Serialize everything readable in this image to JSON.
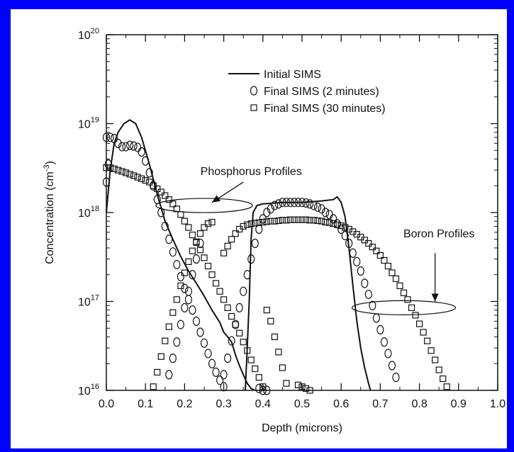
{
  "colors": {
    "page_background": "#0000ff",
    "plot_background": "#ffffff",
    "ink": "#111111"
  },
  "chart_data": {
    "type": "scatter",
    "title": "",
    "xlabel": "Depth (microns)",
    "ylabel": "Concentration (cm-3)",
    "ylabel_parts": {
      "text": "Concentration (cm",
      "superscript": "-3",
      "suffix": ")"
    },
    "xlim": [
      0.0,
      1.0
    ],
    "ylim": [
      1e+16,
      1e+20
    ],
    "yscale": "log",
    "grid": false,
    "legend_position": "top-right",
    "x_ticks": [
      "0.0",
      "0.1",
      "0.2",
      "0.3",
      "0.4",
      "0.5",
      "0.6",
      "0.7",
      "0.8",
      "0.9",
      "1.0"
    ],
    "y_ticks": [
      {
        "base": "10",
        "exp": "16",
        "value": 1e+16
      },
      {
        "base": "10",
        "exp": "17",
        "value": 1e+17
      },
      {
        "base": "10",
        "exp": "18",
        "value": 1e+18
      },
      {
        "base": "10",
        "exp": "19",
        "value": 1e+19
      },
      {
        "base": "10",
        "exp": "20",
        "value": 1e+20
      }
    ],
    "series": [
      {
        "name": "Initial SIMS",
        "marker": "line",
        "segments": [
          [
            [
              0.0,
              1e+18
            ],
            [
              0.01,
              3e+18
            ],
            [
              0.02,
              6e+18
            ],
            [
              0.03,
              8e+18
            ],
            [
              0.045,
              1e+19
            ],
            [
              0.06,
              1.1e+19
            ],
            [
              0.075,
              1e+19
            ],
            [
              0.09,
              7e+18
            ],
            [
              0.11,
              3.5e+18
            ],
            [
              0.13,
              1.6e+18
            ],
            [
              0.15,
              8e+17
            ],
            [
              0.17,
              5e+17
            ],
            [
              0.19,
              3.2e+17
            ],
            [
              0.21,
              2.2e+17
            ],
            [
              0.23,
              1.6e+17
            ],
            [
              0.25,
              1.15e+17
            ],
            [
              0.27,
              8e+16
            ],
            [
              0.29,
              5.8e+16
            ],
            [
              0.3,
              4.5e+16
            ],
            [
              0.31,
              4e+16
            ],
            [
              0.32,
              3.5e+16
            ],
            [
              0.33,
              2.5e+16
            ],
            [
              0.34,
              1.9e+16
            ],
            [
              0.35,
              1.5e+16
            ],
            [
              0.36,
              1.2e+16
            ],
            [
              0.37,
              1.05e+16
            ],
            [
              0.38,
              1e+16
            ]
          ],
          [
            [
              0.355,
              1e+16
            ],
            [
              0.36,
              3e+16
            ],
            [
              0.365,
              1e+17
            ],
            [
              0.37,
              5e+17
            ],
            [
              0.375,
              1e+18
            ],
            [
              0.385,
              1.2e+18
            ],
            [
              0.4,
              1.25e+18
            ],
            [
              0.45,
              1.3e+18
            ],
            [
              0.5,
              1.3e+18
            ],
            [
              0.55,
              1.35e+18
            ],
            [
              0.58,
              1.4e+18
            ],
            [
              0.59,
              1.5e+18
            ],
            [
              0.6,
              1.3e+18
            ],
            [
              0.61,
              9e+17
            ],
            [
              0.62,
              4e+17
            ],
            [
              0.63,
              1.5e+17
            ],
            [
              0.64,
              6e+16
            ],
            [
              0.65,
              3e+16
            ],
            [
              0.66,
              1.8e+16
            ],
            [
              0.67,
              1.2e+16
            ],
            [
              0.675,
              1e+16
            ]
          ]
        ]
      },
      {
        "name": "Final SIMS (2 minutes)",
        "marker": "circle",
        "points": [
          [
            0.0,
            7e+18
          ],
          [
            0.01,
            7e+18
          ],
          [
            0.02,
            6.8e+18
          ],
          [
            0.03,
            6e+18
          ],
          [
            0.04,
            5.5e+18
          ],
          [
            0.05,
            5.5e+18
          ],
          [
            0.06,
            5.7e+18
          ],
          [
            0.07,
            5.6e+18
          ],
          [
            0.08,
            5.4e+18
          ],
          [
            0.09,
            4.8e+18
          ],
          [
            0.1,
            3.8e+18
          ],
          [
            0.11,
            2.8e+18
          ],
          [
            0.12,
            2e+18
          ],
          [
            0.13,
            1.4e+18
          ],
          [
            0.14,
            1e+18
          ],
          [
            0.15,
            7e+17
          ],
          [
            0.16,
            5e+17
          ],
          [
            0.17,
            3.6e+17
          ],
          [
            0.18,
            2.6e+17
          ],
          [
            0.19,
            1.9e+17
          ],
          [
            0.2,
            1.4e+17
          ],
          [
            0.21,
            1.05e+17
          ],
          [
            0.22,
            8e+16
          ],
          [
            0.23,
            6e+16
          ],
          [
            0.24,
            4.5e+16
          ],
          [
            0.25,
            3.4e+16
          ],
          [
            0.26,
            2.6e+16
          ],
          [
            0.27,
            2e+16
          ],
          [
            0.28,
            1.6e+16
          ],
          [
            0.29,
            1.3e+16
          ],
          [
            0.3,
            1.1e+16
          ],
          [
            0.3,
            1.5e+16
          ],
          [
            0.31,
            2.3e+16
          ],
          [
            0.32,
            3.6e+16
          ],
          [
            0.33,
            5.5e+16
          ],
          [
            0.34,
            8.5e+16
          ],
          [
            0.35,
            1.3e+17
          ],
          [
            0.36,
            2e+17
          ],
          [
            0.37,
            3e+17
          ],
          [
            0.38,
            4.5e+17
          ],
          [
            0.39,
            6.5e+17
          ],
          [
            0.4,
            8.5e+17
          ],
          [
            0.41,
            1e+18
          ],
          [
            0.42,
            1.1e+18
          ],
          [
            0.43,
            1.2e+18
          ],
          [
            0.44,
            1.25e+18
          ],
          [
            0.45,
            1.3e+18
          ],
          [
            0.46,
            1.3e+18
          ],
          [
            0.47,
            1.3e+18
          ],
          [
            0.48,
            1.3e+18
          ],
          [
            0.49,
            1.3e+18
          ],
          [
            0.5,
            1.3e+18
          ],
          [
            0.51,
            1.28e+18
          ],
          [
            0.52,
            1.25e+18
          ],
          [
            0.53,
            1.2e+18
          ],
          [
            0.54,
            1.15e+18
          ],
          [
            0.55,
            1.1e+18
          ],
          [
            0.56,
            1e+18
          ],
          [
            0.57,
            9.5e+17
          ],
          [
            0.58,
            8.5e+17
          ],
          [
            0.59,
            7.5e+17
          ],
          [
            0.6,
            6.5e+17
          ],
          [
            0.61,
            5.5e+17
          ],
          [
            0.62,
            4.5e+17
          ],
          [
            0.63,
            3.5e+17
          ],
          [
            0.64,
            2.8e+17
          ],
          [
            0.65,
            2.2e+17
          ],
          [
            0.66,
            1.6e+17
          ],
          [
            0.67,
            1.2e+17
          ],
          [
            0.68,
            9e+16
          ],
          [
            0.69,
            6.5e+16
          ],
          [
            0.7,
            4.8e+16
          ],
          [
            0.71,
            3.5e+16
          ],
          [
            0.72,
            2.6e+16
          ],
          [
            0.73,
            1.9e+16
          ],
          [
            0.74,
            1.4e+16
          ],
          [
            0.0,
            2.2e+18
          ],
          [
            0.005,
            3.5e+18
          ],
          [
            0.16,
            1.5e+16
          ],
          [
            0.17,
            2.3e+16
          ],
          [
            0.18,
            3.5e+16
          ],
          [
            0.19,
            5.5e+16
          ],
          [
            0.2,
            8.5e+16
          ],
          [
            0.21,
            1.3e+17
          ],
          [
            0.22,
            2e+17
          ],
          [
            0.23,
            3e+17
          ],
          [
            0.24,
            4.5e+17
          ],
          [
            0.39,
            1.05e+16
          ],
          [
            0.4,
            1e+16
          ],
          [
            0.41,
            1e+16
          ]
        ]
      },
      {
        "name": "Final SIMS (30 minutes)",
        "marker": "square",
        "points": [
          [
            0.0,
            3.2e+18
          ],
          [
            0.01,
            3.2e+18
          ],
          [
            0.02,
            3.1e+18
          ],
          [
            0.03,
            3e+18
          ],
          [
            0.04,
            2.9e+18
          ],
          [
            0.05,
            2.8e+18
          ],
          [
            0.06,
            2.7e+18
          ],
          [
            0.07,
            2.6e+18
          ],
          [
            0.08,
            2.5e+18
          ],
          [
            0.09,
            2.4e+18
          ],
          [
            0.1,
            2.3e+18
          ],
          [
            0.11,
            2.2e+18
          ],
          [
            0.12,
            2e+18
          ],
          [
            0.13,
            1.85e+18
          ],
          [
            0.14,
            1.7e+18
          ],
          [
            0.15,
            1.55e+18
          ],
          [
            0.16,
            1.4e+18
          ],
          [
            0.17,
            1.25e+18
          ],
          [
            0.18,
            1.1e+18
          ],
          [
            0.19,
            9.5e+17
          ],
          [
            0.2,
            8e+17
          ],
          [
            0.21,
            6.8e+17
          ],
          [
            0.22,
            5.6e+17
          ],
          [
            0.23,
            4.6e+17
          ],
          [
            0.24,
            3.8e+17
          ],
          [
            0.25,
            3.1e+17
          ],
          [
            0.26,
            2.5e+17
          ],
          [
            0.27,
            2e+17
          ],
          [
            0.28,
            1.6e+17
          ],
          [
            0.29,
            1.3e+17
          ],
          [
            0.3,
            1.05e+17
          ],
          [
            0.31,
            8.5e+16
          ],
          [
            0.32,
            6.8e+16
          ],
          [
            0.33,
            5.5e+16
          ],
          [
            0.34,
            4.4e+16
          ],
          [
            0.35,
            3.5e+16
          ],
          [
            0.36,
            2.8e+16
          ],
          [
            0.37,
            2.2e+16
          ],
          [
            0.38,
            1.75e+16
          ],
          [
            0.39,
            1.4e+16
          ],
          [
            0.4,
            1.1e+16
          ],
          [
            0.12,
            1.1e+16
          ],
          [
            0.13,
            1.6e+16
          ],
          [
            0.14,
            2.4e+16
          ],
          [
            0.15,
            3.6e+16
          ],
          [
            0.16,
            5.2e+16
          ],
          [
            0.17,
            7.5e+16
          ],
          [
            0.18,
            1.05e+17
          ],
          [
            0.19,
            1.5e+17
          ],
          [
            0.2,
            2.1e+17
          ],
          [
            0.21,
            2.8e+17
          ],
          [
            0.22,
            3.7e+17
          ],
          [
            0.23,
            4.7e+17
          ],
          [
            0.24,
            5.8e+17
          ],
          [
            0.25,
            6.8e+17
          ],
          [
            0.26,
            7.5e+17
          ],
          [
            0.27,
            7.8e+17
          ],
          [
            0.41,
            8e+16
          ],
          [
            0.42,
            6e+16
          ],
          [
            0.43,
            4e+16
          ],
          [
            0.44,
            2.7e+16
          ],
          [
            0.45,
            1.8e+16
          ],
          [
            0.46,
            1.2e+16
          ],
          [
            0.3,
            3.5e+17
          ],
          [
            0.31,
            4.2e+17
          ],
          [
            0.32,
            5e+17
          ],
          [
            0.33,
            5.8e+17
          ],
          [
            0.34,
            6.5e+17
          ],
          [
            0.35,
            7e+17
          ],
          [
            0.36,
            7.3e+17
          ],
          [
            0.37,
            7.5e+17
          ],
          [
            0.38,
            7.6e+17
          ],
          [
            0.39,
            7.7e+17
          ],
          [
            0.4,
            7.8e+17
          ],
          [
            0.41,
            7.9e+17
          ],
          [
            0.42,
            8e+17
          ],
          [
            0.43,
            8e+17
          ],
          [
            0.44,
            8.1e+17
          ],
          [
            0.45,
            8.2e+17
          ],
          [
            0.46,
            8.2e+17
          ],
          [
            0.47,
            8.3e+17
          ],
          [
            0.48,
            8.3e+17
          ],
          [
            0.49,
            8.3e+17
          ],
          [
            0.5,
            8.3e+17
          ],
          [
            0.51,
            8.3e+17
          ],
          [
            0.52,
            8.2e+17
          ],
          [
            0.53,
            8.2e+17
          ],
          [
            0.54,
            8.1e+17
          ],
          [
            0.55,
            8e+17
          ],
          [
            0.56,
            7.8e+17
          ],
          [
            0.57,
            7.7e+17
          ],
          [
            0.58,
            7.5e+17
          ],
          [
            0.59,
            7.3e+17
          ],
          [
            0.6,
            7.1e+17
          ],
          [
            0.61,
            6.8e+17
          ],
          [
            0.62,
            6.5e+17
          ],
          [
            0.63,
            6.1e+17
          ],
          [
            0.64,
            5.7e+17
          ],
          [
            0.65,
            5.3e+17
          ],
          [
            0.66,
            4.9e+17
          ],
          [
            0.67,
            4.5e+17
          ],
          [
            0.68,
            4.1e+17
          ],
          [
            0.69,
            3.7e+17
          ],
          [
            0.7,
            3.3e+17
          ],
          [
            0.71,
            2.9e+17
          ],
          [
            0.72,
            2.5e+17
          ],
          [
            0.73,
            2.1e+17
          ],
          [
            0.74,
            1.8e+17
          ],
          [
            0.75,
            1.5e+17
          ],
          [
            0.76,
            1.25e+17
          ],
          [
            0.77,
            1.05e+17
          ],
          [
            0.78,
            8.5e+16
          ],
          [
            0.79,
            7e+16
          ],
          [
            0.8,
            5.6e+16
          ],
          [
            0.81,
            4.5e+16
          ],
          [
            0.82,
            3.6e+16
          ],
          [
            0.83,
            2.8e+16
          ],
          [
            0.84,
            2.2e+16
          ],
          [
            0.85,
            1.7e+16
          ],
          [
            0.86,
            1.35e+16
          ],
          [
            0.87,
            1.1e+16
          ],
          [
            0.49,
            1.15e+16
          ],
          [
            0.5,
            1.1e+16
          ],
          [
            0.51,
            1.05e+16
          ],
          [
            0.52,
            1e+16
          ]
        ]
      }
    ],
    "annotations": [
      {
        "text": "Phosphorus Profiles",
        "ellipse_center": [
          0.25,
          1.2e+18
        ],
        "arrow_from": [
          0.35,
          2.2e+18
        ],
        "arrow_to": [
          0.27,
          1.3e+18
        ]
      },
      {
        "text": "Boron Profiles",
        "ellipse_center": [
          0.76,
          8.5e+16
        ],
        "arrow_from": [
          0.84,
          3.5e+17
        ],
        "arrow_to": [
          0.84,
          1e+17
        ]
      }
    ]
  }
}
